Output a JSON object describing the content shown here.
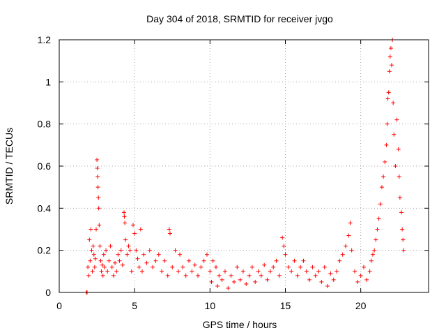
{
  "chart_data": {
    "type": "scatter",
    "title": "Day 304 of 2018, SRMTID for receiver jvgo",
    "xlabel": "GPS time / hours",
    "ylabel": "SRMTID / TECUs",
    "xlim": [
      0,
      24.5
    ],
    "ylim": [
      0,
      1.2
    ],
    "xticks": [
      0,
      5,
      10,
      15,
      20
    ],
    "xtick_labels": [
      "0",
      "5",
      "10",
      "15",
      "20"
    ],
    "yticks": [
      0,
      0.2,
      0.4,
      0.6,
      0.8,
      1.0,
      1.2
    ],
    "ytick_labels": [
      "0",
      "0.2",
      "0.4",
      "0.6",
      "0.8",
      "1",
      "1.2"
    ],
    "grid": true,
    "marker": "+",
    "colors": {
      "series": "#ff0000",
      "axes": "#000000",
      "grid": "#a0a0a0"
    },
    "series": [
      {
        "name": "SRMTID",
        "points": [
          [
            1.8,
            0.0
          ],
          [
            1.85,
            0.0
          ],
          [
            1.9,
            0.12
          ],
          [
            1.95,
            0.08
          ],
          [
            2.0,
            0.25
          ],
          [
            2.05,
            0.15
          ],
          [
            2.1,
            0.3
          ],
          [
            2.15,
            0.2
          ],
          [
            2.2,
            0.1
          ],
          [
            2.25,
            0.22
          ],
          [
            2.3,
            0.18
          ],
          [
            2.35,
            0.12
          ],
          [
            2.4,
            0.16
          ],
          [
            2.45,
            0.3
          ],
          [
            2.5,
            0.63
          ],
          [
            2.52,
            0.59
          ],
          [
            2.55,
            0.55
          ],
          [
            2.57,
            0.5
          ],
          [
            2.6,
            0.45
          ],
          [
            2.62,
            0.4
          ],
          [
            2.65,
            0.32
          ],
          [
            2.7,
            0.22
          ],
          [
            2.75,
            0.15
          ],
          [
            2.8,
            0.1
          ],
          [
            2.85,
            0.13
          ],
          [
            2.9,
            0.08
          ],
          [
            2.95,
            0.18
          ],
          [
            3.0,
            0.12
          ],
          [
            3.1,
            0.2
          ],
          [
            3.2,
            0.1
          ],
          [
            3.3,
            0.15
          ],
          [
            3.4,
            0.22
          ],
          [
            3.5,
            0.12
          ],
          [
            3.6,
            0.08
          ],
          [
            3.7,
            0.14
          ],
          [
            3.8,
            0.1
          ],
          [
            3.9,
            0.18
          ],
          [
            4.0,
            0.15
          ],
          [
            4.1,
            0.2
          ],
          [
            4.2,
            0.13
          ],
          [
            4.3,
            0.38
          ],
          [
            4.32,
            0.36
          ],
          [
            4.35,
            0.33
          ],
          [
            4.4,
            0.25
          ],
          [
            4.5,
            0.18
          ],
          [
            4.6,
            0.22
          ],
          [
            4.7,
            0.2
          ],
          [
            4.8,
            0.1
          ],
          [
            4.9,
            0.32
          ],
          [
            5.0,
            0.28
          ],
          [
            5.1,
            0.2
          ],
          [
            5.2,
            0.16
          ],
          [
            5.3,
            0.12
          ],
          [
            5.4,
            0.3
          ],
          [
            5.5,
            0.1
          ],
          [
            5.6,
            0.18
          ],
          [
            5.8,
            0.14
          ],
          [
            6.0,
            0.2
          ],
          [
            6.2,
            0.12
          ],
          [
            6.4,
            0.15
          ],
          [
            6.6,
            0.18
          ],
          [
            6.8,
            0.1
          ],
          [
            7.0,
            0.15
          ],
          [
            7.2,
            0.08
          ],
          [
            7.3,
            0.3
          ],
          [
            7.35,
            0.28
          ],
          [
            7.5,
            0.12
          ],
          [
            7.7,
            0.2
          ],
          [
            7.9,
            0.1
          ],
          [
            8.0,
            0.18
          ],
          [
            8.2,
            0.12
          ],
          [
            8.4,
            0.08
          ],
          [
            8.6,
            0.15
          ],
          [
            8.8,
            0.1
          ],
          [
            9.0,
            0.13
          ],
          [
            9.2,
            0.08
          ],
          [
            9.4,
            0.12
          ],
          [
            9.6,
            0.15
          ],
          [
            9.8,
            0.18
          ],
          [
            10.0,
            0.1
          ],
          [
            10.1,
            0.05
          ],
          [
            10.2,
            0.15
          ],
          [
            10.4,
            0.12
          ],
          [
            10.5,
            0.03
          ],
          [
            10.6,
            0.08
          ],
          [
            10.8,
            0.06
          ],
          [
            11.0,
            0.1
          ],
          [
            11.2,
            0.02
          ],
          [
            11.4,
            0.08
          ],
          [
            11.6,
            0.05
          ],
          [
            11.8,
            0.12
          ],
          [
            12.0,
            0.06
          ],
          [
            12.2,
            0.1
          ],
          [
            12.4,
            0.04
          ],
          [
            12.6,
            0.08
          ],
          [
            12.8,
            0.12
          ],
          [
            13.0,
            0.05
          ],
          [
            13.2,
            0.1
          ],
          [
            13.4,
            0.08
          ],
          [
            13.6,
            0.13
          ],
          [
            13.8,
            0.06
          ],
          [
            14.0,
            0.1
          ],
          [
            14.2,
            0.12
          ],
          [
            14.4,
            0.15
          ],
          [
            14.6,
            0.08
          ],
          [
            14.8,
            0.26
          ],
          [
            14.9,
            0.22
          ],
          [
            15.0,
            0.18
          ],
          [
            15.2,
            0.12
          ],
          [
            15.4,
            0.1
          ],
          [
            15.6,
            0.15
          ],
          [
            15.8,
            0.08
          ],
          [
            16.0,
            0.12
          ],
          [
            16.2,
            0.15
          ],
          [
            16.4,
            0.1
          ],
          [
            16.6,
            0.06
          ],
          [
            16.8,
            0.12
          ],
          [
            17.0,
            0.08
          ],
          [
            17.2,
            0.1
          ],
          [
            17.4,
            0.05
          ],
          [
            17.6,
            0.12
          ],
          [
            17.8,
            0.03
          ],
          [
            18.0,
            0.09
          ],
          [
            18.2,
            0.06
          ],
          [
            18.4,
            0.1
          ],
          [
            18.6,
            0.15
          ],
          [
            18.8,
            0.18
          ],
          [
            19.0,
            0.22
          ],
          [
            19.2,
            0.27
          ],
          [
            19.3,
            0.33
          ],
          [
            19.4,
            0.2
          ],
          [
            19.6,
            0.1
          ],
          [
            19.8,
            0.05
          ],
          [
            20.0,
            0.08
          ],
          [
            20.2,
            0.12
          ],
          [
            20.4,
            0.06
          ],
          [
            20.6,
            0.1
          ],
          [
            20.7,
            0.15
          ],
          [
            20.8,
            0.18
          ],
          [
            20.9,
            0.2
          ],
          [
            21.0,
            0.25
          ],
          [
            21.1,
            0.3
          ],
          [
            21.2,
            0.35
          ],
          [
            21.3,
            0.42
          ],
          [
            21.4,
            0.5
          ],
          [
            21.5,
            0.55
          ],
          [
            21.6,
            0.62
          ],
          [
            21.7,
            0.7
          ],
          [
            21.75,
            0.8
          ],
          [
            21.8,
            0.92
          ],
          [
            21.85,
            0.95
          ],
          [
            21.9,
            1.05
          ],
          [
            21.95,
            1.12
          ],
          [
            22.0,
            1.16
          ],
          [
            22.05,
            1.08
          ],
          [
            22.1,
            1.2
          ],
          [
            22.15,
            0.9
          ],
          [
            22.2,
            0.75
          ],
          [
            22.3,
            0.6
          ],
          [
            22.4,
            0.82
          ],
          [
            22.5,
            0.68
          ],
          [
            22.55,
            0.55
          ],
          [
            22.6,
            0.45
          ],
          [
            22.7,
            0.38
          ],
          [
            22.75,
            0.3
          ],
          [
            22.8,
            0.25
          ],
          [
            22.85,
            0.2
          ]
        ]
      }
    ]
  }
}
